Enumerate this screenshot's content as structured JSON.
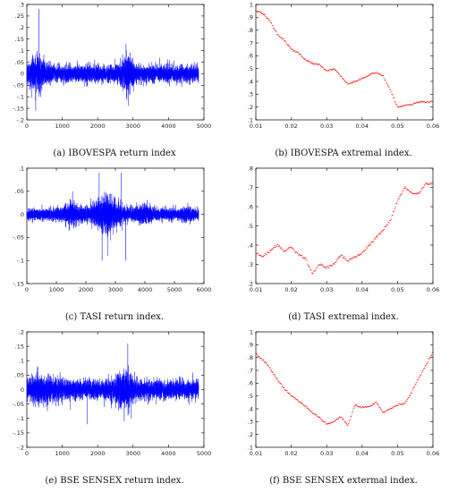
{
  "chart_data": [
    {
      "type": "line",
      "caption": "(a) IBOVESPA return index",
      "color": "#0000ff",
      "xlim": [
        0,
        5000
      ],
      "ylim": [
        -0.2,
        0.3
      ],
      "xticks": [
        0,
        1000,
        2000,
        3000,
        4000,
        5000
      ],
      "yticks": [
        -0.2,
        -0.15,
        -0.1,
        -0.05,
        0,
        0.05,
        0.1,
        0.15,
        0.2,
        0.25,
        0.3
      ],
      "n_points": 4900,
      "baseline_vol": 0.018,
      "volatility_bursts": [
        {
          "x": 300,
          "width": 200,
          "scale": 2.2
        },
        {
          "x": 2850,
          "width": 150,
          "scale": 2.4
        }
      ],
      "spikes": [
        {
          "x": 250,
          "y": -0.16
        },
        {
          "x": 290,
          "y": 0.1
        },
        {
          "x": 340,
          "y": 0.28
        },
        {
          "x": 390,
          "y": -0.1
        },
        {
          "x": 2800,
          "y": 0.13
        },
        {
          "x": 2870,
          "y": -0.1
        }
      ]
    },
    {
      "type": "scatter",
      "caption": "(b) IBOVESPA extremal index.",
      "color": "#ff0000",
      "xlim": [
        0.01,
        0.06
      ],
      "ylim": [
        0.1,
        1.0
      ],
      "xticks": [
        0.01,
        0.02,
        0.03,
        0.04,
        0.05,
        0.06
      ],
      "yticks": [
        0.1,
        0.2,
        0.3,
        0.4,
        0.5,
        0.6,
        0.7,
        0.8,
        0.9,
        1
      ],
      "x": [
        0.01,
        0.012,
        0.014,
        0.016,
        0.018,
        0.02,
        0.022,
        0.024,
        0.026,
        0.028,
        0.03,
        0.032,
        0.034,
        0.036,
        0.038,
        0.04,
        0.042,
        0.044,
        0.046,
        0.048,
        0.05,
        0.052,
        0.054,
        0.056,
        0.058,
        0.06
      ],
      "y": [
        0.95,
        0.93,
        0.87,
        0.77,
        0.72,
        0.65,
        0.62,
        0.57,
        0.54,
        0.53,
        0.48,
        0.5,
        0.44,
        0.38,
        0.4,
        0.42,
        0.45,
        0.47,
        0.44,
        0.33,
        0.2,
        0.21,
        0.22,
        0.24,
        0.24,
        0.24
      ]
    },
    {
      "type": "line",
      "caption": "(c) TASI return index.",
      "color": "#0000ff",
      "xlim": [
        0,
        6000
      ],
      "ylim": [
        -0.15,
        0.1
      ],
      "xticks": [
        0,
        1000,
        2000,
        3000,
        4000,
        5000,
        6000
      ],
      "yticks": [
        -0.15,
        -0.1,
        -0.05,
        0,
        0.05,
        0.1
      ],
      "n_points": 5500,
      "baseline_vol": 0.006,
      "volatility_bursts": [
        {
          "x": 1500,
          "width": 300,
          "scale": 2.0
        },
        {
          "x": 2700,
          "width": 500,
          "scale": 3.2
        },
        {
          "x": 4000,
          "width": 300,
          "scale": 1.8
        },
        {
          "x": 5400,
          "width": 150,
          "scale": 1.5
        }
      ],
      "spikes": [
        {
          "x": 2450,
          "y": 0.09
        },
        {
          "x": 2550,
          "y": -0.1
        },
        {
          "x": 2750,
          "y": -0.09
        },
        {
          "x": 3200,
          "y": 0.09
        },
        {
          "x": 3350,
          "y": -0.1
        },
        {
          "x": 1550,
          "y": 0.05
        }
      ]
    },
    {
      "type": "scatter",
      "caption": "(d) TASI extremal index.",
      "color": "#ff0000",
      "xlim": [
        0.01,
        0.06
      ],
      "ylim": [
        0.2,
        0.8
      ],
      "xticks": [
        0.01,
        0.02,
        0.03,
        0.04,
        0.05,
        0.06
      ],
      "yticks": [
        0.2,
        0.3,
        0.4,
        0.5,
        0.6,
        0.7,
        0.8
      ],
      "x": [
        0.01,
        0.012,
        0.014,
        0.016,
        0.018,
        0.02,
        0.022,
        0.024,
        0.026,
        0.028,
        0.03,
        0.032,
        0.034,
        0.036,
        0.038,
        0.04,
        0.042,
        0.044,
        0.046,
        0.048,
        0.05,
        0.052,
        0.054,
        0.056,
        0.058,
        0.06
      ],
      "y": [
        0.36,
        0.34,
        0.37,
        0.4,
        0.37,
        0.39,
        0.35,
        0.33,
        0.25,
        0.3,
        0.28,
        0.3,
        0.35,
        0.32,
        0.34,
        0.36,
        0.4,
        0.44,
        0.48,
        0.53,
        0.63,
        0.7,
        0.67,
        0.67,
        0.72,
        0.72
      ]
    },
    {
      "type": "line",
      "caption": "(e) BSE SENSEX return index.",
      "color": "#0000ff",
      "xlim": [
        0,
        5000
      ],
      "ylim": [
        -0.2,
        0.2
      ],
      "xticks": [
        0,
        1000,
        2000,
        3000,
        4000,
        5000
      ],
      "yticks": [
        -0.2,
        -0.15,
        -0.1,
        -0.05,
        0,
        0.05,
        0.1,
        0.15,
        0.2
      ],
      "n_points": 4800,
      "baseline_vol": 0.016,
      "volatility_bursts": [
        {
          "x": 500,
          "width": 500,
          "scale": 1.5
        },
        {
          "x": 2750,
          "width": 300,
          "scale": 2.0
        }
      ],
      "spikes": [
        {
          "x": 1700,
          "y": -0.12
        },
        {
          "x": 2850,
          "y": 0.16
        },
        {
          "x": 2750,
          "y": -0.11
        },
        {
          "x": 2950,
          "y": -0.1
        },
        {
          "x": 300,
          "y": 0.08
        }
      ]
    },
    {
      "type": "scatter",
      "caption": "(f) BSE SENSEX extermal index.",
      "color": "#ff0000",
      "xlim": [
        0.01,
        0.06
      ],
      "ylim": [
        0.1,
        1.0
      ],
      "xticks": [
        0.01,
        0.02,
        0.03,
        0.04,
        0.05,
        0.06
      ],
      "yticks": [
        0.1,
        0.2,
        0.3,
        0.4,
        0.5,
        0.6,
        0.7,
        0.8,
        0.9,
        1
      ],
      "x": [
        0.01,
        0.012,
        0.014,
        0.016,
        0.018,
        0.02,
        0.022,
        0.024,
        0.026,
        0.028,
        0.03,
        0.032,
        0.034,
        0.036,
        0.038,
        0.04,
        0.042,
        0.044,
        0.046,
        0.048,
        0.05,
        0.052,
        0.054,
        0.056,
        0.058,
        0.06
      ],
      "y": [
        0.83,
        0.78,
        0.72,
        0.63,
        0.56,
        0.5,
        0.46,
        0.42,
        0.37,
        0.33,
        0.28,
        0.3,
        0.34,
        0.27,
        0.43,
        0.41,
        0.42,
        0.45,
        0.37,
        0.4,
        0.43,
        0.44,
        0.53,
        0.64,
        0.74,
        0.84
      ]
    }
  ]
}
